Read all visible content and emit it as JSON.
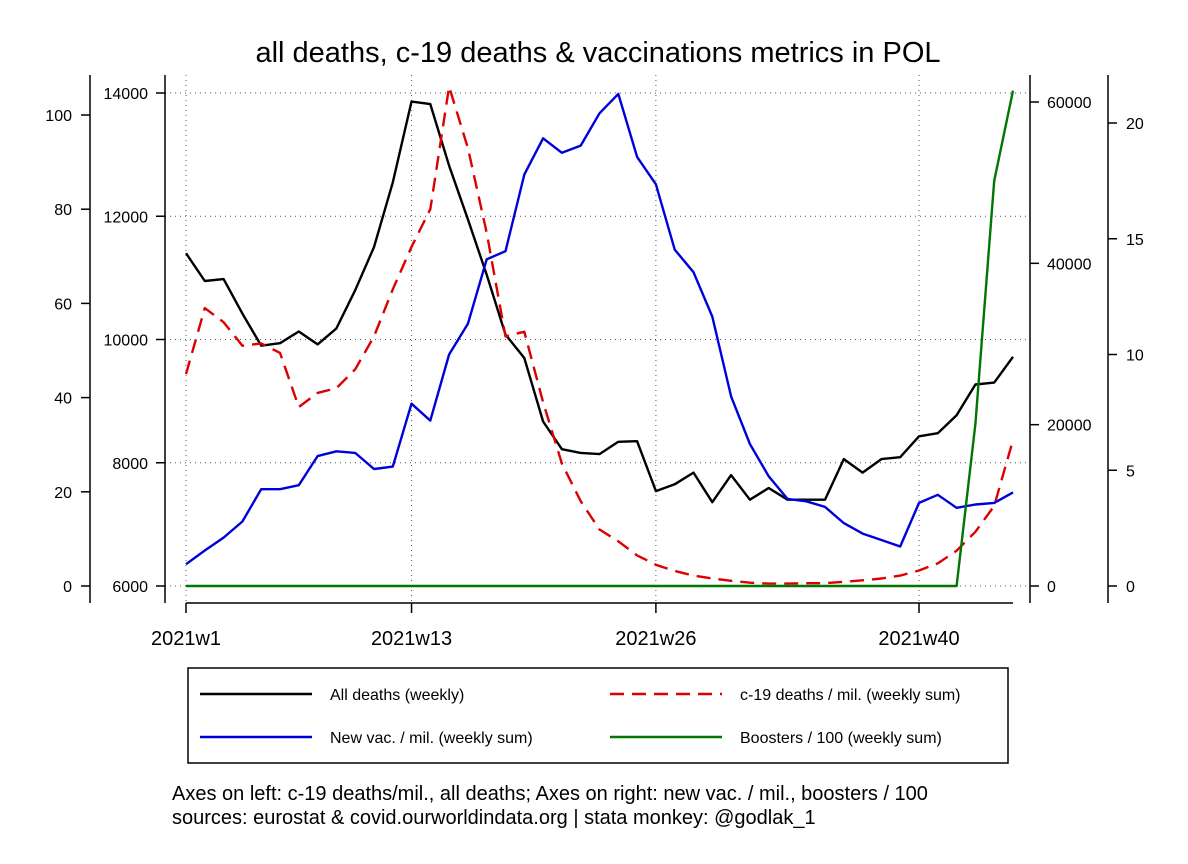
{
  "chart_data": {
    "type": "line",
    "title": "all deaths, c-19 deaths & vaccinations metrics in POL",
    "x": {
      "start_week": 1,
      "end_week": 45,
      "ticks": [
        {
          "week": 1,
          "label": "2021w1"
        },
        {
          "week": 13,
          "label": "2021w13"
        },
        {
          "week": 26,
          "label": "2021w26"
        },
        {
          "week": 40,
          "label": "2021w40"
        }
      ]
    },
    "axes": {
      "c19": {
        "position": "left-outer",
        "range": [
          0,
          104
        ],
        "ticks": [
          0,
          20,
          40,
          60,
          80,
          100
        ]
      },
      "deaths": {
        "position": "left-inner",
        "range": [
          6000,
          14000
        ],
        "ticks": [
          6000,
          8000,
          10000,
          12000,
          14000
        ]
      },
      "vac": {
        "position": "right-inner",
        "range": [
          0,
          61000
        ],
        "ticks": [
          0,
          20000,
          40000,
          60000
        ]
      },
      "boosters": {
        "position": "right-outer",
        "range": [
          0,
          21.5
        ],
        "ticks": [
          0,
          5,
          10,
          15,
          20
        ]
      }
    },
    "grid": true,
    "legend_position": "bottom",
    "series": [
      {
        "name": "All deaths (weekly)",
        "axis": "deaths",
        "color": "#000000",
        "dash": "solid",
        "values": [
          11400,
          10950,
          10980,
          10420,
          9900,
          9940,
          10130,
          9920,
          10180,
          10800,
          11500,
          12550,
          13860,
          13820,
          12820,
          11950,
          11050,
          10080,
          9700,
          8670,
          8220,
          8160,
          8140,
          8340,
          8350,
          7540,
          7650,
          7840,
          7360,
          7800,
          7400,
          7590,
          7400,
          7400,
          7400,
          8060,
          7840,
          8060,
          8090,
          8430,
          8480,
          8770,
          9270,
          9300,
          9720
        ]
      },
      {
        "name": "c-19 deaths / mil. (weekly sum)",
        "axis": "c19",
        "color": "#dd0000",
        "dash": "dashed",
        "values": [
          45,
          59,
          56,
          51,
          51.5,
          49.5,
          38,
          41,
          42,
          46,
          53,
          63,
          72,
          80,
          106,
          93,
          75,
          53,
          54,
          39,
          26,
          18,
          12,
          9.5,
          6.5,
          4.5,
          3.2,
          2.2,
          1.6,
          1.1,
          0.7,
          0.5,
          0.5,
          0.6,
          0.6,
          0.9,
          1.2,
          1.6,
          2.2,
          3.3,
          4.8,
          7.5,
          11.5,
          17,
          31
        ]
      },
      {
        "name": "New vac. / mil. (weekly sum)",
        "axis": "vac",
        "color": "#0000dd",
        "dash": "solid",
        "values": [
          2700,
          4400,
          6000,
          8000,
          12000,
          12000,
          12500,
          16100,
          16700,
          16500,
          14500,
          14800,
          22600,
          20500,
          28700,
          32500,
          40500,
          41500,
          51000,
          55500,
          53700,
          54600,
          58600,
          61000,
          53200,
          49800,
          41700,
          38900,
          33400,
          23500,
          17600,
          13600,
          10800,
          10500,
          9800,
          7800,
          6500,
          5700,
          4900,
          10300,
          11300,
          9700,
          10100,
          10300,
          11600
        ]
      },
      {
        "name": "Boosters / 100 (weekly sum)",
        "axis": "boosters",
        "color": "#007700",
        "dash": "solid",
        "values": [
          0,
          0,
          0,
          0,
          0,
          0,
          0,
          0,
          0,
          0,
          0,
          0,
          0,
          0,
          0,
          0,
          0,
          0,
          0,
          0,
          0,
          0,
          0,
          0,
          0,
          0,
          0,
          0,
          0,
          0,
          0,
          0,
          0,
          0,
          0,
          0,
          0,
          0,
          0,
          0,
          0,
          0,
          7,
          17.5,
          21.4
        ]
      }
    ],
    "notes": [
      "Axes on left: c-19 deaths/mil., all deaths; Axes on right: new vac. / mil., boosters / 100",
      "sources: eurostat & covid.ourworldindata.org | stata monkey: @godlak_1"
    ]
  }
}
